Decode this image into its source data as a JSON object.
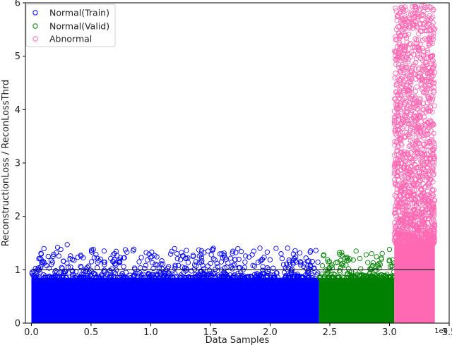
{
  "chart_data": {
    "type": "scatter",
    "title": "",
    "xlabel": "Data Samples",
    "ylabel": "ReconstructionLoss / ReconLossThrd",
    "x_offset_label": "1e6",
    "xlim": [
      -0.05,
      3.5
    ],
    "ylim": [
      0,
      6
    ],
    "x_unit_multiplier": 1000000,
    "xticks": [
      0.0,
      0.5,
      1.0,
      1.5,
      2.0,
      2.5,
      3.0,
      3.5
    ],
    "xtick_labels": [
      "0.0",
      "0.5",
      "1.0",
      "1.5",
      "2.0",
      "2.5",
      "3.0",
      "3.5"
    ],
    "yticks": [
      0,
      1,
      2,
      3,
      4,
      5,
      6
    ],
    "ytick_labels": [
      "0",
      "1",
      "2",
      "3",
      "4",
      "5",
      "6"
    ],
    "grid": false,
    "legend_position": "top-left",
    "marker": "open-circle",
    "series": [
      {
        "name": "Normal(Train)",
        "color": "#0000ff",
        "x_range": [
          0.0,
          2.41
        ],
        "dense_band_max_y": 0.85,
        "max_y": 1.47,
        "sample_points": [
          [
            0.08,
            1.2
          ],
          [
            0.22,
            1.42
          ],
          [
            0.3,
            1.47
          ],
          [
            0.52,
            1.38
          ],
          [
            0.8,
            1.33
          ],
          [
            1.22,
            1.3
          ],
          [
            1.48,
            1.35
          ],
          [
            1.85,
            1.28
          ],
          [
            2.05,
            1.4
          ],
          [
            2.3,
            1.22
          ]
        ]
      },
      {
        "name": "Normal(Valid)",
        "color": "#008000",
        "x_range": [
          2.41,
          3.04
        ],
        "dense_band_max_y": 0.85,
        "max_y": 1.38,
        "sample_points": [
          [
            2.45,
            1.28
          ],
          [
            2.6,
            1.32
          ],
          [
            2.72,
            1.35
          ],
          [
            2.85,
            1.3
          ],
          [
            3.0,
            1.38
          ]
        ]
      },
      {
        "name": "Abnormal",
        "color": "#ff69b4",
        "x_range": [
          3.04,
          3.38
        ],
        "dense_band_max_y": 1.5,
        "max_y": 5.95,
        "sample_points": [
          [
            3.05,
            5.9
          ],
          [
            3.12,
            5.85
          ],
          [
            3.2,
            5.6
          ],
          [
            3.28,
            5.3
          ],
          [
            3.1,
            4.8
          ],
          [
            3.33,
            4.6
          ],
          [
            3.18,
            4.2
          ],
          [
            3.06,
            3.9
          ],
          [
            3.3,
            3.7
          ],
          [
            3.22,
            3.2
          ],
          [
            3.15,
            2.8
          ],
          [
            3.36,
            2.5
          ],
          [
            3.08,
            2.2
          ]
        ]
      }
    ],
    "threshold_line": {
      "y": 1.0,
      "x_range": [
        0.0,
        3.38
      ],
      "color": "#000000"
    }
  }
}
